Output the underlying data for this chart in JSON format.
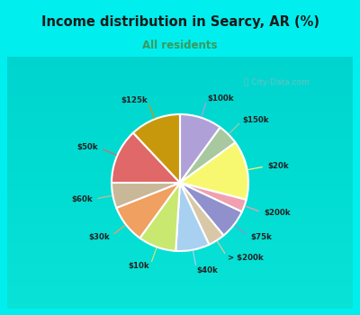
{
  "title": "Income distribution in Searcy, AR (%)",
  "subtitle": "All residents",
  "title_color": "#1a1a1a",
  "subtitle_color": "#3a9a5c",
  "background_outer": "#00eeee",
  "background_inner_color": "#d8f0e8",
  "watermark": "ⓘ City-Data.com",
  "labels": [
    "$100k",
    "$150k",
    "$20k",
    "$200k",
    "$75k",
    "> $200k",
    "$40k",
    "$10k",
    "$30k",
    "$60k",
    "$50k",
    "$125k"
  ],
  "values": [
    10,
    5,
    14,
    3,
    7,
    4,
    8,
    9,
    9,
    6,
    13,
    12
  ],
  "colors": [
    "#b0a0d8",
    "#a8c8a0",
    "#f8f870",
    "#f0a0b0",
    "#9090cc",
    "#d8c8a8",
    "#a8d0f0",
    "#c8e870",
    "#f0a060",
    "#c8b898",
    "#e06868",
    "#c8980c"
  ],
  "line_colors": [
    "#b0a0d8",
    "#a8c8a0",
    "#f8f870",
    "#f0a0b0",
    "#9090cc",
    "#d8c8a8",
    "#a8d0f0",
    "#c8e870",
    "#f0a060",
    "#c8b898",
    "#e06868",
    "#c8980c"
  ]
}
